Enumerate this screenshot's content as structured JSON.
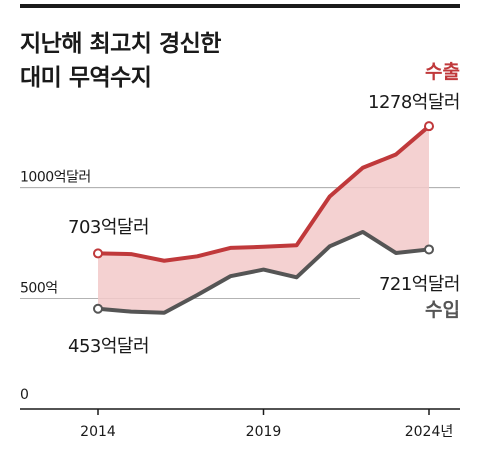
{
  "title_line1": "지난해 최고치 경신한",
  "title_line2": "대미 무역수지",
  "colors": {
    "export": "#c0393b",
    "import": "#555555",
    "fill": "#f2c9c9",
    "grid": "#9a9a9a",
    "axis": "#1a1a1a"
  },
  "chart_data": {
    "type": "line",
    "x": [
      2014,
      2015,
      2016,
      2017,
      2018,
      2019,
      2020,
      2021,
      2022,
      2023,
      2024
    ],
    "xlim": [
      2014,
      2024
    ],
    "ylim": [
      0,
      1400
    ],
    "y_ticks": [
      {
        "value": 1000,
        "label": "1000억달러"
      },
      {
        "value": 500,
        "label": "500억"
      },
      {
        "value": 0,
        "label": "0"
      }
    ],
    "x_ticks": [
      {
        "value": 2014,
        "label": "2014"
      },
      {
        "value": 2019,
        "label": "2019"
      },
      {
        "value": 2024,
        "label": "2024년"
      }
    ],
    "series": [
      {
        "key": "export",
        "name": "수출",
        "values": [
          703,
          700,
          670,
          690,
          728,
          733,
          740,
          960,
          1090,
          1150,
          1278
        ]
      },
      {
        "key": "import",
        "name": "수입",
        "values": [
          453,
          440,
          435,
          515,
          600,
          630,
          595,
          735,
          800,
          705,
          721
        ]
      }
    ],
    "annotations": {
      "export_start": "703억달러",
      "export_end": "1278억달러",
      "import_start": "453억달러",
      "import_end": "721억달러"
    }
  }
}
